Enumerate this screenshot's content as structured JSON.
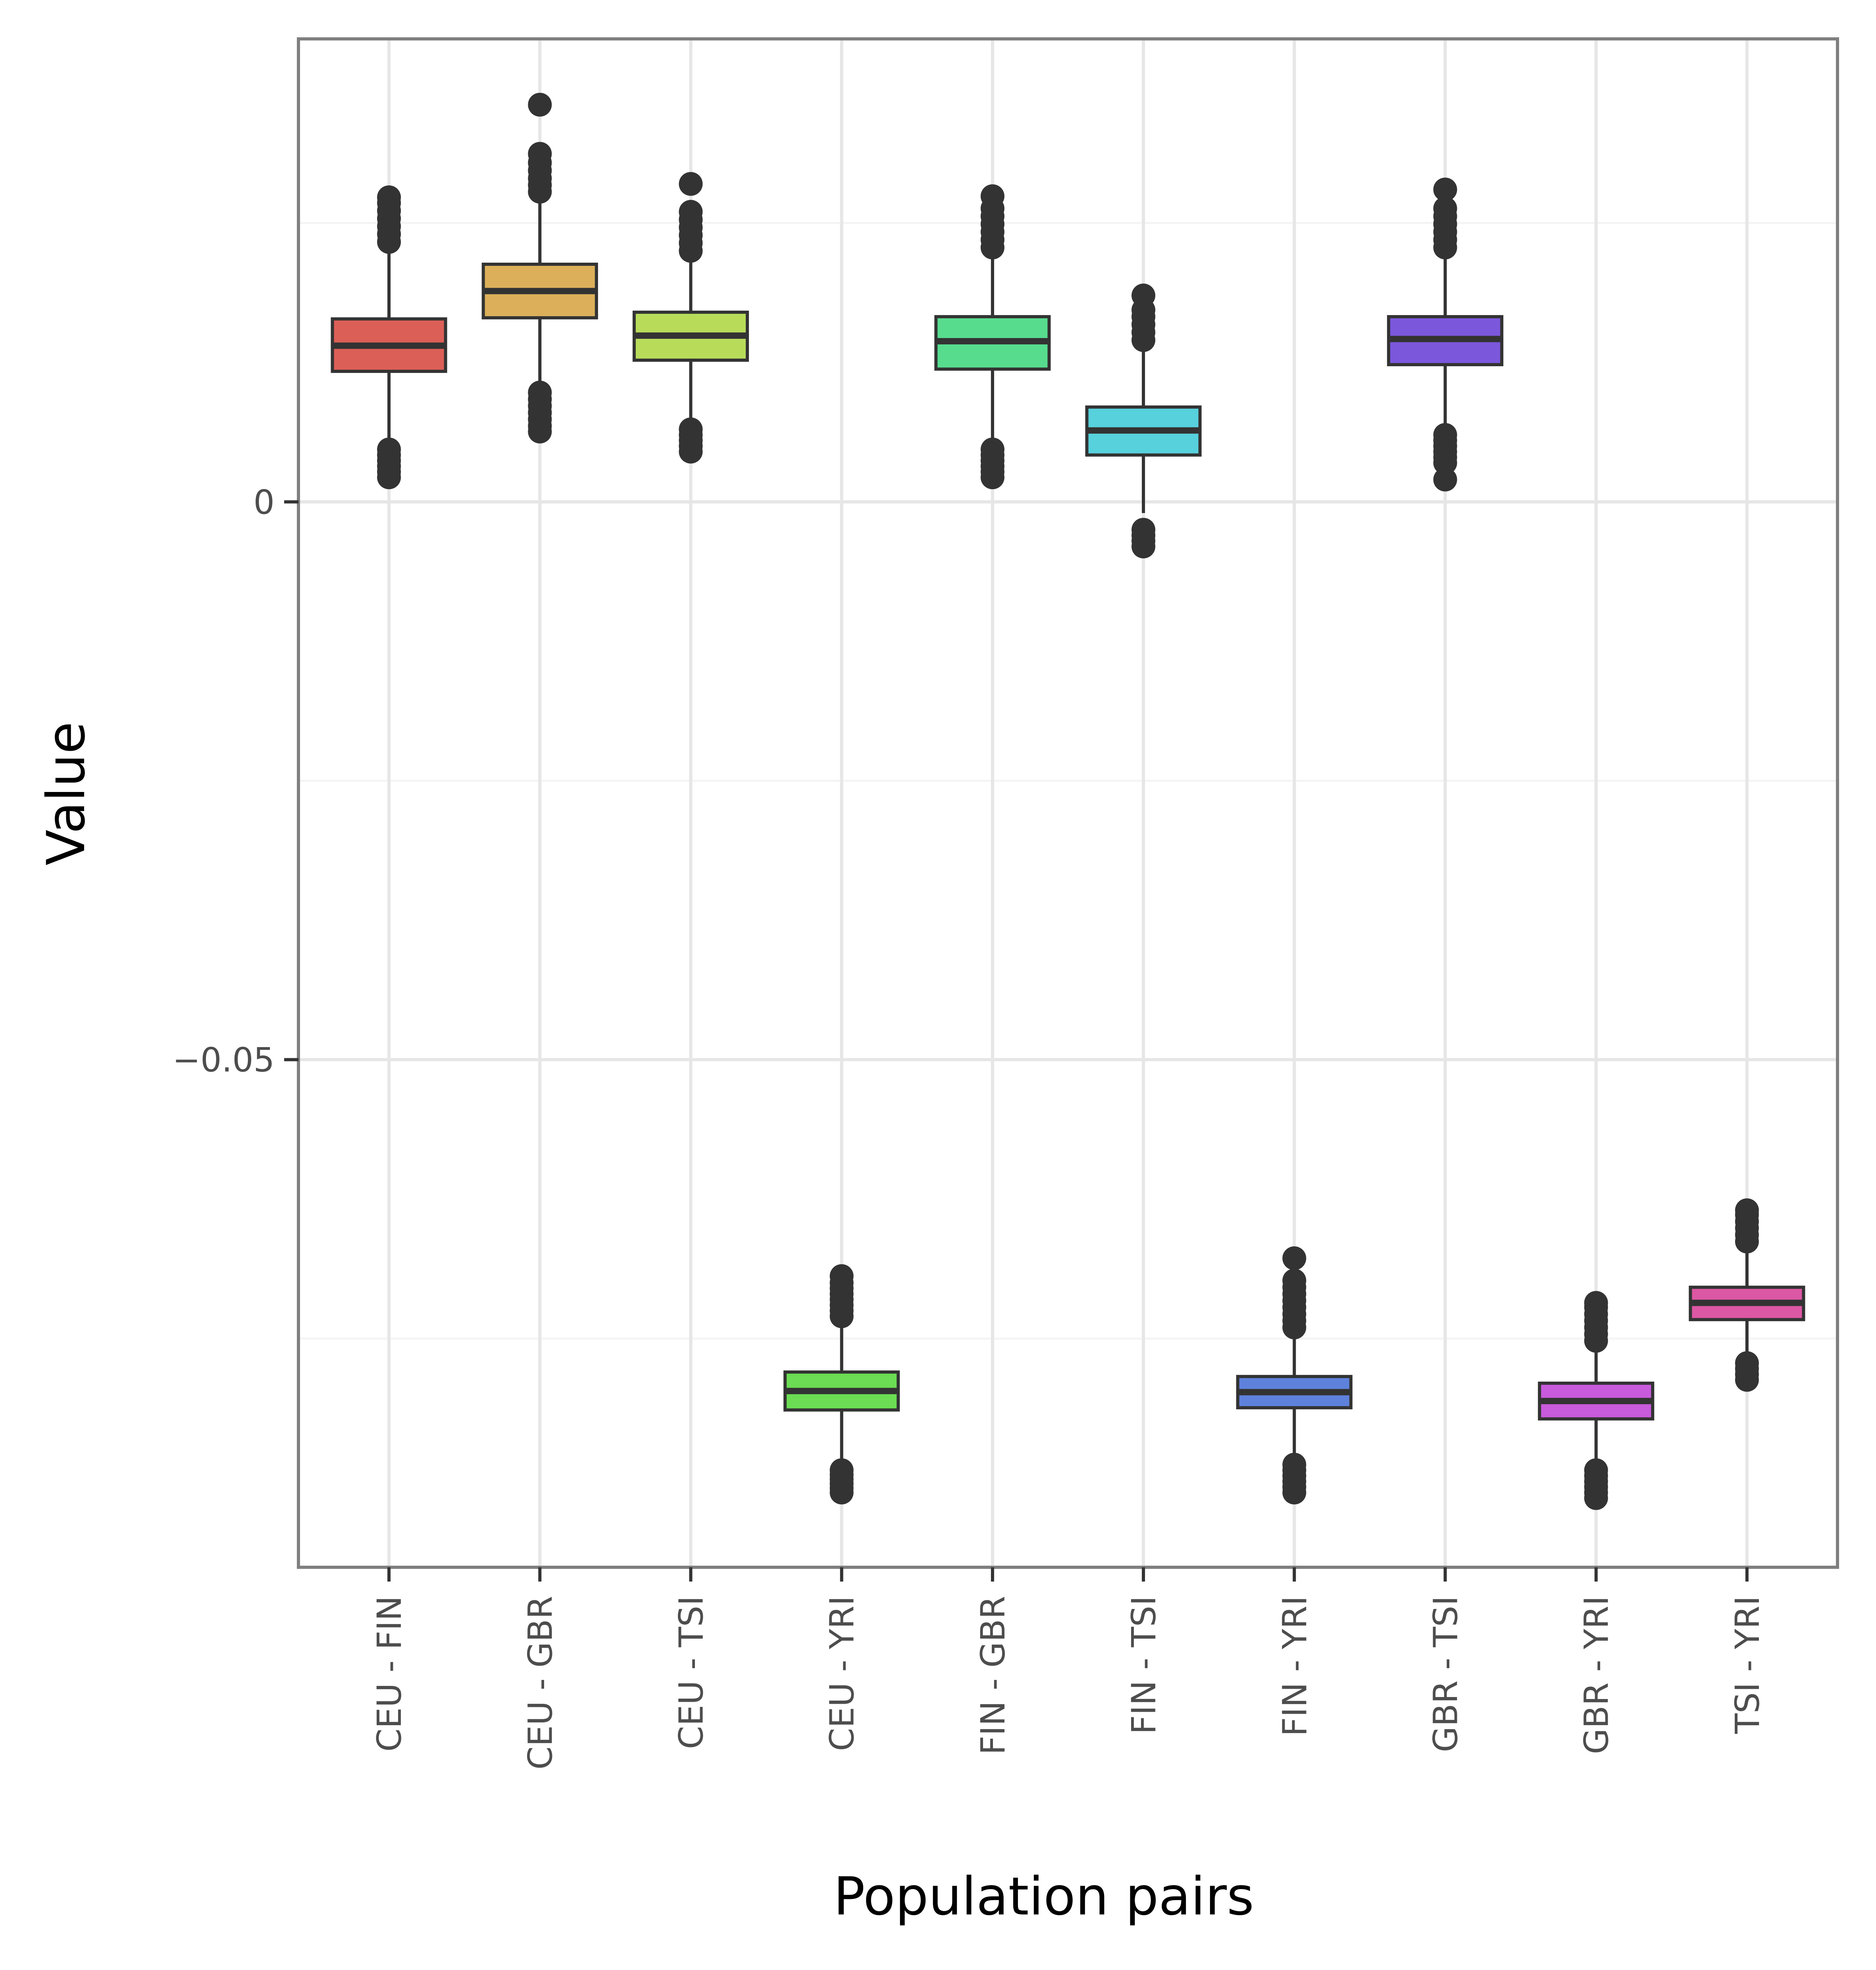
{
  "chart_data": {
    "type": "box",
    "title": "",
    "xlabel": "Population pairs",
    "ylabel": "Value",
    "ylim": [
      -0.0955,
      0.0415
    ],
    "yticks": [
      0,
      -0.05
    ],
    "ytick_labels": [
      "0",
      "−0.05"
    ],
    "ygrid_minor": [
      0.025,
      -0.025,
      -0.075
    ],
    "grid": true,
    "legend": "none",
    "categories": [
      "CEU - FIN",
      "CEU - GBR",
      "CEU - TSI",
      "CEU - YRI",
      "FIN - GBR",
      "FIN - TSI",
      "FIN - YRI",
      "GBR - TSI",
      "GBR - YRI",
      "TSI - YRI"
    ],
    "colors": [
      "#dc5f57",
      "#dcb05a",
      "#b8dc5a",
      "#6bdc53",
      "#57dc8e",
      "#57d1dc",
      "#5e82dc",
      "#7b57dc",
      "#c85adc",
      "#dc57a4"
    ],
    "boxes": [
      {
        "q1": 0.0117,
        "median": 0.014,
        "q3": 0.0164,
        "whisker_low": 0.005,
        "whisker_high": 0.023,
        "outliers": [
          0.0022,
          0.0027,
          0.0032,
          0.0037,
          0.0042,
          0.0047,
          0.0233,
          0.024,
          0.0247,
          0.0254,
          0.0261,
          0.0268,
          0.0273
        ]
      },
      {
        "q1": 0.0165,
        "median": 0.0189,
        "q3": 0.0213,
        "whisker_low": 0.01,
        "whisker_high": 0.0285,
        "outliers": [
          0.0063,
          0.0068,
          0.0074,
          0.008,
          0.0086,
          0.0092,
          0.0098,
          0.0278,
          0.0284,
          0.029,
          0.0297,
          0.0304,
          0.0312,
          0.0356
        ]
      },
      {
        "q1": 0.0127,
        "median": 0.0149,
        "q3": 0.017,
        "whisker_low": 0.0065,
        "whisker_high": 0.0225,
        "outliers": [
          0.0045,
          0.005,
          0.0055,
          0.006,
          0.0065,
          0.0225,
          0.0232,
          0.0239,
          0.0246,
          0.0253,
          0.026,
          0.0285
        ]
      },
      {
        "q1": -0.0814,
        "median": -0.0797,
        "q3": -0.078,
        "whisker_low": -0.086,
        "whisker_high": -0.0737,
        "outliers": [
          -0.0888,
          -0.0884,
          -0.088,
          -0.0876,
          -0.0872,
          -0.0868,
          -0.073,
          -0.0725,
          -0.072,
          -0.0715,
          -0.071,
          -0.0705,
          -0.07,
          -0.0694
        ]
      },
      {
        "q1": 0.0119,
        "median": 0.0144,
        "q3": 0.0166,
        "whisker_low": 0.005,
        "whisker_high": 0.0228,
        "outliers": [
          0.0022,
          0.0027,
          0.0032,
          0.0037,
          0.0042,
          0.0047,
          0.0228,
          0.0235,
          0.0242,
          0.0249,
          0.0256,
          0.0263,
          0.0274
        ]
      },
      {
        "q1": 0.0042,
        "median": 0.0064,
        "q3": 0.0085,
        "whisker_low": -0.001,
        "whisker_high": 0.0145,
        "outliers": [
          -0.004,
          -0.0035,
          -0.003,
          -0.0025,
          0.0145,
          0.0152,
          0.0159,
          0.0166,
          0.0172,
          0.0185
        ]
      },
      {
        "q1": -0.0812,
        "median": -0.0798,
        "q3": -0.0784,
        "whisker_low": -0.0858,
        "whisker_high": -0.0736,
        "outliers": [
          -0.0888,
          -0.0883,
          -0.0878,
          -0.0873,
          -0.0868,
          -0.0863,
          -0.074,
          -0.0734,
          -0.0728,
          -0.0722,
          -0.0716,
          -0.071,
          -0.0704,
          -0.0698,
          -0.0678
        ]
      },
      {
        "q1": 0.0123,
        "median": 0.0146,
        "q3": 0.0166,
        "whisker_low": 0.006,
        "whisker_high": 0.0228,
        "outliers": [
          0.002,
          0.0035,
          0.004,
          0.0045,
          0.005,
          0.0055,
          0.006,
          0.0228,
          0.0235,
          0.0242,
          0.0249,
          0.0256,
          0.0263,
          0.028
        ]
      },
      {
        "q1": -0.0822,
        "median": -0.0806,
        "q3": -0.079,
        "whisker_low": -0.0862,
        "whisker_high": -0.075,
        "outliers": [
          -0.0893,
          -0.0888,
          -0.0883,
          -0.0878,
          -0.0873,
          -0.0868,
          -0.0752,
          -0.0746,
          -0.074,
          -0.0734,
          -0.0728,
          -0.0722,
          -0.0718
        ]
      },
      {
        "q1": -0.0733,
        "median": -0.0718,
        "q3": -0.0704,
        "whisker_low": -0.077,
        "whisker_high": -0.0665,
        "outliers": [
          -0.0787,
          -0.0782,
          -0.0777,
          -0.0772,
          -0.0663,
          -0.0657,
          -0.0651,
          -0.0645,
          -0.0639,
          -0.0635
        ]
      }
    ]
  }
}
